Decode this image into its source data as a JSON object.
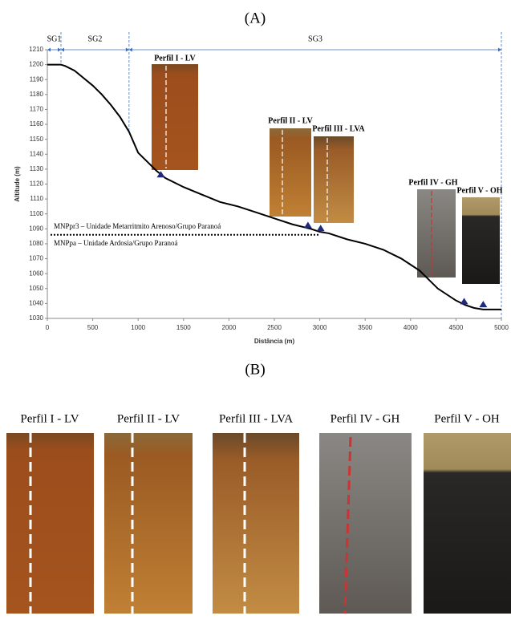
{
  "panel_labels": [
    "(A)",
    "(B)"
  ],
  "chart_data": {
    "type": "line",
    "xlabel": "Distância (m)",
    "ylabel": "Altitude (m)",
    "x": [
      0,
      150,
      200,
      300,
      400,
      500,
      600,
      700,
      800,
      900,
      1000,
      1100,
      1200,
      1300,
      1500,
      1700,
      1900,
      2100,
      2300,
      2500,
      2700,
      2900,
      3000,
      3100,
      3300,
      3500,
      3700,
      3900,
      4100,
      4300,
      4500,
      4600,
      4700,
      4800,
      5000
    ],
    "series": [
      {
        "color": "#000000",
        "values": [
          1200,
          1200,
          1199,
          1196,
          1191,
          1186,
          1180,
          1173,
          1165,
          1155,
          1141,
          1135,
          1129,
          1124,
          1118,
          1113,
          1108,
          1105,
          1101,
          1097,
          1093,
          1090,
          1088,
          1087,
          1083,
          1080,
          1076,
          1070,
          1062,
          1050,
          1042,
          1039,
          1037,
          1036,
          1036
        ]
      }
    ],
    "xlim": [
      0,
      5000
    ],
    "xticks": [
      0,
      500,
      1000,
      1500,
      2000,
      2500,
      3000,
      3500,
      4000,
      4500,
      5000
    ],
    "ylim": [
      1030,
      1210
    ],
    "yticks": [
      1030,
      1040,
      1050,
      1060,
      1070,
      1080,
      1090,
      1100,
      1110,
      1120,
      1130,
      1140,
      1150,
      1160,
      1170,
      1180,
      1190,
      1200,
      1210
    ],
    "profiles": {
      "color": "#1f2a7a",
      "labels": [
        "Perfil I - LV",
        "Perfil II - LV",
        "Perfil III - LVA",
        "Perfil IV - GH",
        "Perfil V - OH"
      ],
      "x": [
        1250,
        2870,
        3010,
        4590,
        4800
      ],
      "y": [
        1125,
        1091,
        1089,
        1040,
        1038
      ]
    },
    "segments": [
      {
        "name": "SG1",
        "range": [
          0,
          150
        ]
      },
      {
        "name": "SG2",
        "range": [
          150,
          900
        ]
      },
      {
        "name": "SG3",
        "range": [
          900,
          5000
        ]
      }
    ],
    "contact": {
      "x": [
        0,
        3000
      ],
      "y": 1086,
      "upper": "MNPpr3 – Unidade Metarritmito Arenoso/Grupo Paranoá",
      "lower": "MNPpa – Unidade Ardosia/Grupo Paranoá"
    }
  },
  "photos": {
    "labels": [
      "Perfil I - LV",
      "Perfil II - LV",
      "Perfil III - LVA",
      "Perfil IV - GH",
      "Perfil V - OH"
    ]
  }
}
